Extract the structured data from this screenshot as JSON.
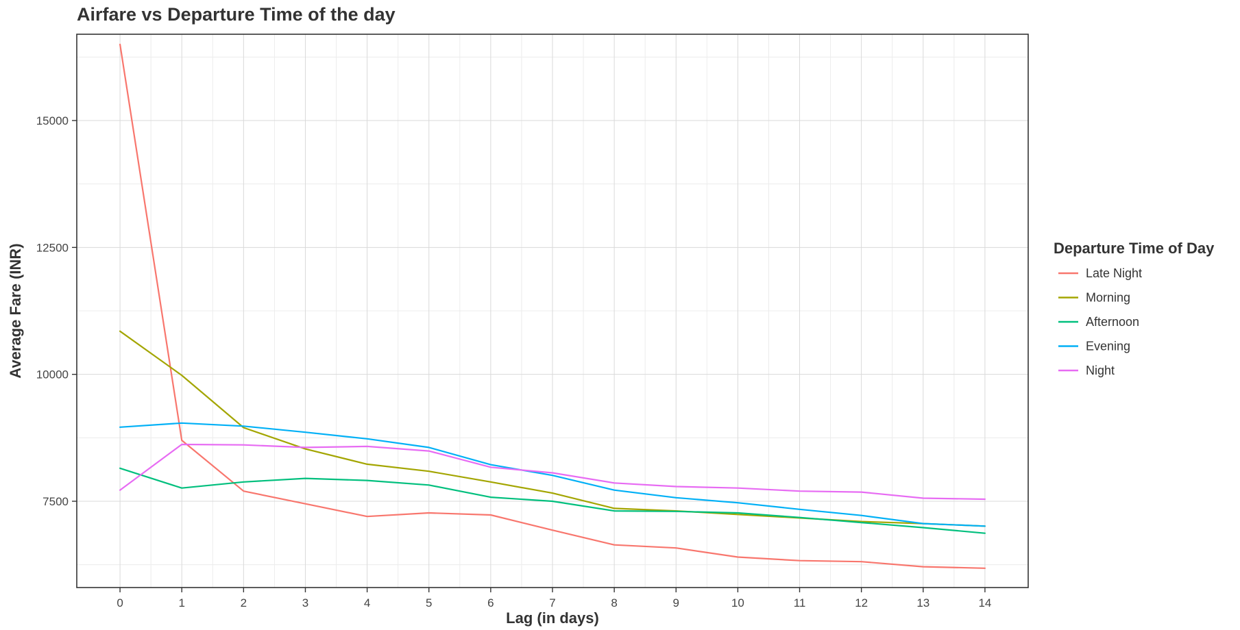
{
  "chart_data": {
    "type": "line",
    "title": "Airfare vs Departure Time of the day",
    "xlabel": "Lag (in days)",
    "ylabel": "Average Fare (INR)",
    "x": [
      0,
      1,
      2,
      3,
      4,
      5,
      6,
      7,
      8,
      9,
      10,
      11,
      12,
      13,
      14
    ],
    "xlim": [
      -0.7,
      14.7
    ],
    "ylim": [
      5800,
      16700
    ],
    "yticks": [
      7500,
      10000,
      12500,
      15000
    ],
    "yminor": [
      6250,
      8750,
      11250,
      13750,
      16250
    ],
    "grid": true,
    "legend": {
      "title": "Departure Time of Day",
      "placement": "right"
    },
    "series": [
      {
        "name": "Late Night",
        "color": "#F8766D",
        "values": [
          16500,
          8700,
          7700,
          7450,
          7200,
          7270,
          7230,
          6930,
          6640,
          6580,
          6400,
          6330,
          6310,
          6210,
          6180
        ]
      },
      {
        "name": "Morning",
        "color": "#A3A500",
        "values": [
          10850,
          9980,
          8950,
          8530,
          8230,
          8090,
          7880,
          7660,
          7360,
          7310,
          7240,
          7170,
          7100,
          7060,
          7010
        ]
      },
      {
        "name": "Afternoon",
        "color": "#00BF7D",
        "values": [
          8150,
          7760,
          7880,
          7950,
          7910,
          7820,
          7580,
          7500,
          7310,
          7300,
          7270,
          7180,
          7080,
          6980,
          6870
        ]
      },
      {
        "name": "Evening",
        "color": "#00B0F6",
        "values": [
          8960,
          9040,
          8980,
          8860,
          8730,
          8560,
          8220,
          8010,
          7720,
          7570,
          7470,
          7340,
          7220,
          7060,
          7010
        ]
      },
      {
        "name": "Night",
        "color": "#E76BF3",
        "values": [
          7720,
          8620,
          8610,
          8560,
          8580,
          8490,
          8170,
          8060,
          7860,
          7790,
          7760,
          7700,
          7680,
          7560,
          7540
        ]
      }
    ]
  }
}
